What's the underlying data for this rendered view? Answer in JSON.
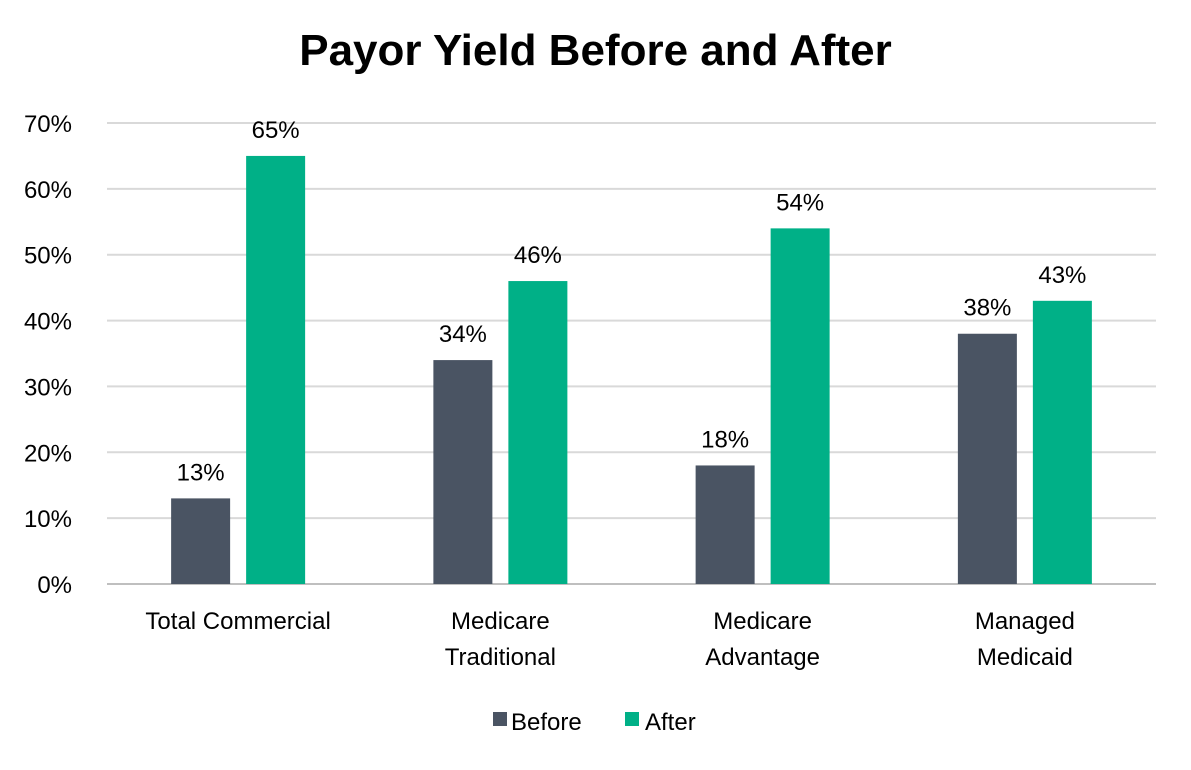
{
  "chart_data": {
    "type": "bar",
    "title": "Payor Yield Before and After",
    "categories": [
      [
        "Total Commercial"
      ],
      [
        "Medicare",
        "Traditional"
      ],
      [
        "Medicare",
        "Advantage"
      ],
      [
        "Managed",
        "Medicaid"
      ]
    ],
    "series": [
      {
        "name": "Before",
        "color": "#4a5463",
        "values": [
          13,
          34,
          18,
          38
        ]
      },
      {
        "name": "After",
        "color": "#00b087",
        "values": [
          65,
          46,
          54,
          43
        ]
      }
    ],
    "data_labels": [
      [
        "13%",
        "34%",
        "18%",
        "38%"
      ],
      [
        "65%",
        "46%",
        "54%",
        "43%"
      ]
    ],
    "yticks": [
      "0%",
      "10%",
      "20%",
      "30%",
      "40%",
      "50%",
      "60%",
      "70%"
    ],
    "ylim": [
      0,
      70
    ],
    "ylabel": "",
    "xlabel": "",
    "grid": true,
    "legend": "bottom-center"
  }
}
